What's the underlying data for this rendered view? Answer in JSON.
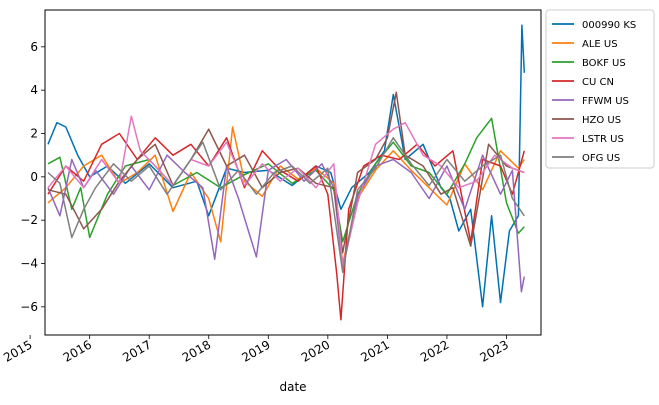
{
  "chart_data": {
    "type": "line",
    "title": "",
    "xlabel": "date",
    "ylabel": "",
    "xlim": [
      2015.25,
      2023.58
    ],
    "ylim": [
      -7.3,
      7.7
    ],
    "grid": false,
    "legend_position": "outside-right",
    "x_ticks": [
      {
        "value": 2015,
        "label": "2015"
      },
      {
        "value": 2016,
        "label": "2016"
      },
      {
        "value": 2017,
        "label": "2017"
      },
      {
        "value": 2018,
        "label": "2018"
      },
      {
        "value": 2019,
        "label": "2019"
      },
      {
        "value": 2020,
        "label": "2020"
      },
      {
        "value": 2021,
        "label": "2021"
      },
      {
        "value": 2022,
        "label": "2022"
      },
      {
        "value": 2023,
        "label": "2023"
      }
    ],
    "y_ticks": [
      {
        "value": -6,
        "label": "−6"
      },
      {
        "value": -4,
        "label": "−4"
      },
      {
        "value": -2,
        "label": "−2"
      },
      {
        "value": 0,
        "label": "0"
      },
      {
        "value": 2,
        "label": "2"
      },
      {
        "value": 4,
        "label": "4"
      },
      {
        "value": 6,
        "label": "6"
      }
    ],
    "series": [
      {
        "name": "000990 KS",
        "color": "#0072B2",
        "x": [
          2015.3,
          2015.45,
          2015.6,
          2015.8,
          2016.0,
          2016.3,
          2016.6,
          2017.0,
          2017.4,
          2017.8,
          2018.0,
          2018.3,
          2018.6,
          2019.0,
          2019.4,
          2019.8,
          2020.05,
          2020.22,
          2020.4,
          2020.7,
          2020.95,
          2021.1,
          2021.3,
          2021.6,
          2021.9,
          2022.05,
          2022.2,
          2022.4,
          2022.6,
          2022.75,
          2022.9,
          2023.05,
          2023.2,
          2023.26,
          2023.3
        ],
        "y": [
          1.5,
          2.5,
          2.3,
          1.0,
          0.0,
          0.5,
          -0.3,
          0.6,
          -0.5,
          -0.2,
          -1.8,
          0.4,
          0.2,
          0.3,
          -0.4,
          0.5,
          0.2,
          -1.5,
          -0.5,
          0.2,
          1.2,
          3.8,
          0.8,
          1.5,
          -0.5,
          -1.0,
          -2.5,
          -1.5,
          -6.0,
          -1.8,
          -5.8,
          -2.5,
          -1.8,
          7.0,
          4.8
        ]
      },
      {
        "name": "ALE US",
        "color": "#FF7F0E",
        "x": [
          2015.3,
          2015.6,
          2015.9,
          2016.2,
          2016.5,
          2016.8,
          2017.1,
          2017.4,
          2017.7,
          2018.0,
          2018.2,
          2018.4,
          2018.6,
          2018.9,
          2019.2,
          2019.5,
          2019.8,
          2020.1,
          2020.25,
          2020.5,
          2020.8,
          2021.1,
          2021.4,
          2021.7,
          2022.0,
          2022.3,
          2022.6,
          2022.9,
          2023.2,
          2023.3
        ],
        "y": [
          -1.2,
          -0.5,
          0.5,
          1.0,
          -0.3,
          0.2,
          1.0,
          -1.6,
          0.2,
          -1.0,
          -3.0,
          2.3,
          -0.2,
          -0.9,
          0.5,
          -0.1,
          0.4,
          -0.3,
          -4.0,
          -1.0,
          0.3,
          1.2,
          0.3,
          -0.5,
          -1.3,
          0.6,
          -0.6,
          1.2,
          0.4,
          0.8
        ]
      },
      {
        "name": "BOKF US",
        "color": "#2CA02C",
        "x": [
          2015.3,
          2015.5,
          2015.7,
          2015.85,
          2016.0,
          2016.3,
          2016.6,
          2017.0,
          2017.4,
          2017.8,
          2018.2,
          2018.6,
          2019.0,
          2019.4,
          2019.8,
          2020.1,
          2020.25,
          2020.5,
          2020.8,
          2021.1,
          2021.4,
          2021.7,
          2022.0,
          2022.3,
          2022.5,
          2022.75,
          2023.0,
          2023.2,
          2023.3
        ],
        "y": [
          0.6,
          0.9,
          -1.5,
          -0.5,
          -2.8,
          -0.8,
          0.5,
          0.8,
          -0.4,
          0.2,
          -0.5,
          0.1,
          0.6,
          -0.3,
          0.3,
          -0.6,
          -3.0,
          -0.8,
          0.6,
          1.6,
          0.5,
          0.2,
          -0.8,
          0.6,
          1.8,
          2.7,
          -1.2,
          -2.6,
          -2.3
        ]
      },
      {
        "name": "CU CN",
        "color": "#D62728",
        "x": [
          2015.3,
          2015.6,
          2015.9,
          2016.2,
          2016.5,
          2016.8,
          2017.1,
          2017.4,
          2017.7,
          2018.0,
          2018.3,
          2018.6,
          2018.9,
          2019.2,
          2019.5,
          2019.8,
          2020.0,
          2020.15,
          2020.22,
          2020.35,
          2020.6,
          2020.9,
          2021.2,
          2021.5,
          2021.8,
          2022.1,
          2022.4,
          2022.6,
          2022.9,
          2023.1,
          2023.3
        ],
        "y": [
          -0.8,
          0.5,
          -0.2,
          1.5,
          2.0,
          0.8,
          1.8,
          1.0,
          1.5,
          0.5,
          1.8,
          -0.5,
          1.2,
          0.3,
          -0.2,
          0.5,
          -0.8,
          -4.5,
          -6.6,
          -1.5,
          0.5,
          1.0,
          0.8,
          1.5,
          0.5,
          1.2,
          -3.0,
          0.8,
          0.5,
          -0.8,
          1.2
        ]
      },
      {
        "name": "FFWM US",
        "color": "#9467BD",
        "x": [
          2015.3,
          2015.5,
          2015.7,
          2015.9,
          2016.1,
          2016.4,
          2016.7,
          2017.0,
          2017.3,
          2017.6,
          2017.9,
          2018.1,
          2018.3,
          2018.5,
          2018.8,
          2019.0,
          2019.3,
          2019.6,
          2019.9,
          2020.1,
          2020.25,
          2020.5,
          2020.8,
          2021.1,
          2021.4,
          2021.7,
          2022.0,
          2022.3,
          2022.6,
          2022.9,
          2023.1,
          2023.25,
          2023.3
        ],
        "y": [
          -0.5,
          -1.8,
          0.8,
          -0.5,
          0.3,
          -0.8,
          0.5,
          -0.6,
          1.0,
          0.2,
          -0.5,
          -3.8,
          0.5,
          -1.0,
          -3.7,
          0.3,
          0.8,
          -0.2,
          0.6,
          -0.5,
          -4.2,
          -0.9,
          0.5,
          0.8,
          0.2,
          -1.0,
          0.5,
          -1.5,
          1.0,
          -0.8,
          0.3,
          -5.3,
          -4.6
        ]
      },
      {
        "name": "HZO US",
        "color": "#8C564B",
        "x": [
          2015.3,
          2015.6,
          2015.9,
          2016.2,
          2016.5,
          2016.8,
          2017.1,
          2017.4,
          2017.7,
          2018.0,
          2018.3,
          2018.6,
          2018.9,
          2019.2,
          2019.5,
          2019.8,
          2020.1,
          2020.25,
          2020.5,
          2020.8,
          2021.0,
          2021.15,
          2021.3,
          2021.6,
          2021.9,
          2022.1,
          2022.4,
          2022.7,
          2023.0,
          2023.3
        ],
        "y": [
          -0.6,
          -0.8,
          -2.4,
          -1.5,
          -0.2,
          0.8,
          1.5,
          -0.4,
          0.8,
          2.2,
          0.5,
          1.0,
          -0.5,
          0.2,
          0.4,
          -0.3,
          -0.5,
          -3.5,
          0.2,
          0.8,
          1.8,
          3.9,
          1.0,
          0.5,
          -0.8,
          -0.5,
          -3.2,
          1.5,
          0.5,
          0.2
        ]
      },
      {
        "name": "LSTR US",
        "color": "#E377C2",
        "x": [
          2015.3,
          2015.6,
          2015.9,
          2016.2,
          2016.5,
          2016.7,
          2016.85,
          2017.1,
          2017.4,
          2017.7,
          2018.0,
          2018.3,
          2018.6,
          2018.9,
          2019.2,
          2019.5,
          2019.8,
          2020.1,
          2020.25,
          2020.5,
          2020.8,
          2021.1,
          2021.3,
          2021.6,
          2021.9,
          2022.2,
          2022.5,
          2022.8,
          2023.1,
          2023.3
        ],
        "y": [
          -0.5,
          0.5,
          -0.5,
          0.8,
          -0.3,
          2.8,
          1.2,
          0.5,
          -0.4,
          0.8,
          0.5,
          1.6,
          -0.4,
          0.6,
          -0.2,
          0.4,
          -0.5,
          0.6,
          -4.2,
          -1.2,
          1.5,
          2.2,
          2.5,
          1.0,
          0.5,
          -0.5,
          -0.2,
          1.0,
          0.4,
          0.2
        ]
      },
      {
        "name": "OFG US",
        "color": "#7F7F7F",
        "x": [
          2015.3,
          2015.5,
          2015.7,
          2015.9,
          2016.1,
          2016.4,
          2016.7,
          2017.0,
          2017.3,
          2017.6,
          2017.9,
          2018.2,
          2018.5,
          2018.8,
          2019.1,
          2019.4,
          2019.7,
          2020.0,
          2020.25,
          2020.5,
          2020.8,
          2021.1,
          2021.4,
          2021.7,
          2022.0,
          2022.3,
          2022.6,
          2022.9,
          2023.1,
          2023.3
        ],
        "y": [
          0.2,
          -0.3,
          -2.8,
          -1.5,
          -0.5,
          0.6,
          -0.2,
          0.5,
          -0.8,
          0.4,
          1.6,
          -0.6,
          0.3,
          -0.8,
          0.2,
          0.5,
          -0.3,
          0.4,
          -4.4,
          -0.6,
          0.4,
          1.8,
          0.6,
          -0.4,
          0.8,
          -0.2,
          0.5,
          1.0,
          -1.0,
          -1.8
        ]
      }
    ]
  }
}
